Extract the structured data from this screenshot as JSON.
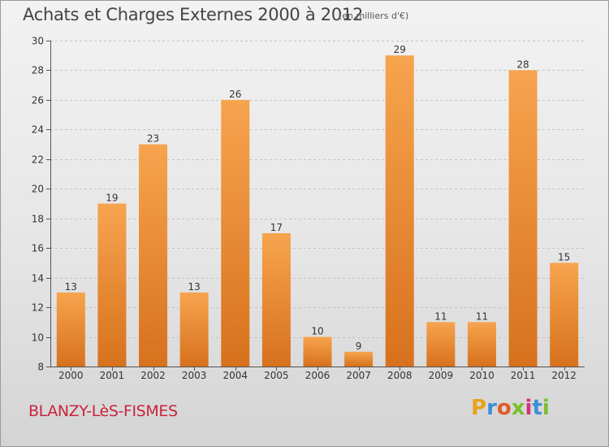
{
  "title": "Achats et Charges Externes 2000 à 2012",
  "unit_note": "(en milliers d'€)",
  "commune": "BLANZY-LèS-FISMES",
  "logo": {
    "p": "P",
    "r": "r",
    "o": "o",
    "x": "x",
    "i1": "i",
    "t": "t",
    "i2": "i"
  },
  "colors": {
    "bar_top": "#f7a44e",
    "bar_bottom": "#d7711d",
    "commune_text": "#c8243c"
  },
  "chart_data": {
    "type": "bar",
    "title": "Achats et Charges Externes 2000 à 2012",
    "xlabel": "",
    "ylabel": "",
    "categories": [
      "2000",
      "2001",
      "2002",
      "2003",
      "2004",
      "2005",
      "2006",
      "2007",
      "2008",
      "2009",
      "2010",
      "2011",
      "2012"
    ],
    "values": [
      13,
      19,
      23,
      13,
      26,
      17,
      10,
      9,
      29,
      11,
      11,
      28,
      15
    ],
    "ylim": [
      8,
      30
    ],
    "yticks": [
      8,
      10,
      12,
      14,
      16,
      18,
      20,
      22,
      24,
      26,
      28,
      30
    ],
    "grid": true,
    "data_labels": true
  }
}
